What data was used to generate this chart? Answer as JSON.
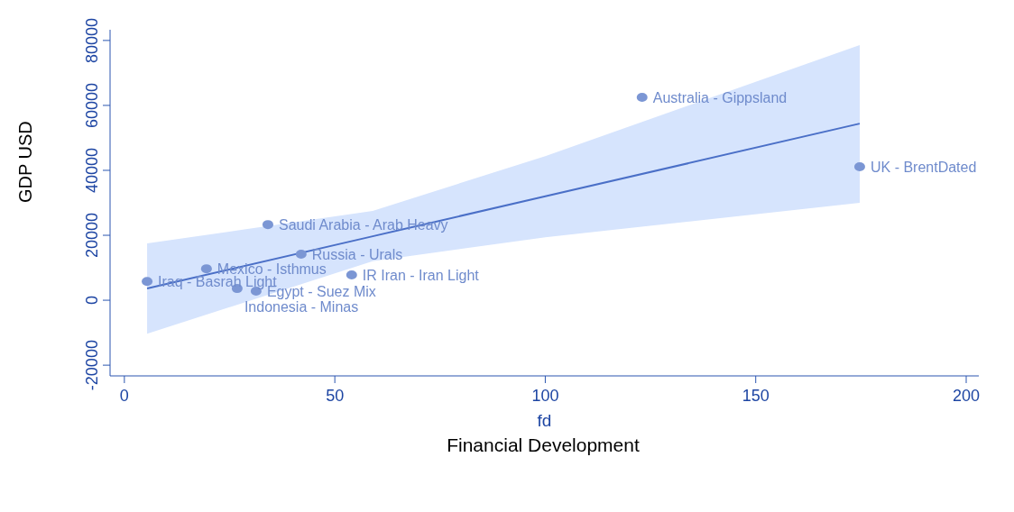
{
  "chart_data": {
    "type": "scatter",
    "xlabel": "fd",
    "ylabel": "GDP USD",
    "xlim": [
      -3.4,
      203
    ],
    "ylim": [
      -23300,
      83300
    ],
    "xticks": [
      0,
      50,
      100,
      150,
      200
    ],
    "yticks": [
      -20000,
      0,
      20000,
      40000,
      60000,
      80000
    ],
    "series": [
      {
        "type": "scatter",
        "marker": "circle",
        "color": "#7b96d4",
        "x": [
          5.4,
          19.5,
          26.8,
          31.3,
          34.1,
          42,
          54,
          123,
          174.7
        ],
        "values": [
          5800,
          9700,
          3600,
          2800,
          23300,
          14200,
          7800,
          62500,
          41100
        ]
      },
      {
        "type": "line",
        "color": "#4a6fc7",
        "x": [
          5.4,
          59,
          100,
          174.7
        ],
        "values": [
          3600,
          19700,
          32000,
          54400
        ],
        "lower": [
          -10300,
          12000,
          19400,
          30000
        ],
        "upper": [
          17500,
          27500,
          44400,
          78600
        ]
      }
    ],
    "annotations": [
      {
        "text": "Iraq - Basrah Light",
        "x": 5.4,
        "y": 5800
      },
      {
        "text": "Mexico - Isthmus",
        "x": 19.5,
        "y": 9700
      },
      {
        "text": "Indonesia - Minas",
        "x": 26.8,
        "y": 3600
      },
      {
        "text": "Egypt - Suez Mix",
        "x": 31.3,
        "y": 2800
      },
      {
        "text": "Saudi Arabia - Arab Heavy",
        "x": 34.1,
        "y": 23300
      },
      {
        "text": "Russia - Urals",
        "x": 42,
        "y": 14200
      },
      {
        "text": "IR Iran - Iran Light",
        "x": 54,
        "y": 7800
      },
      {
        "text": "Australia - Gippsland",
        "x": 123,
        "y": 62500
      },
      {
        "text": "UK - BrentDated",
        "x": 174.7,
        "y": 41100
      },
      "Financial Development"
    ]
  }
}
